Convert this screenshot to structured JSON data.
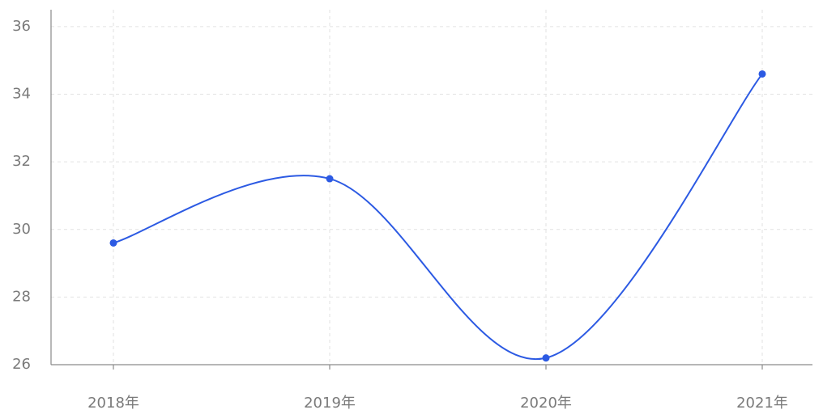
{
  "chart_data": {
    "type": "line",
    "smooth": true,
    "categories": [
      "2018年",
      "2019年",
      "2020年",
      "2021年"
    ],
    "values": [
      29.6,
      31.5,
      26.2,
      34.6
    ],
    "color": "#2c5ae3",
    "ylim": [
      26,
      36.5
    ],
    "yticks": [
      26,
      28,
      30,
      32,
      34,
      36
    ],
    "grid": true
  }
}
